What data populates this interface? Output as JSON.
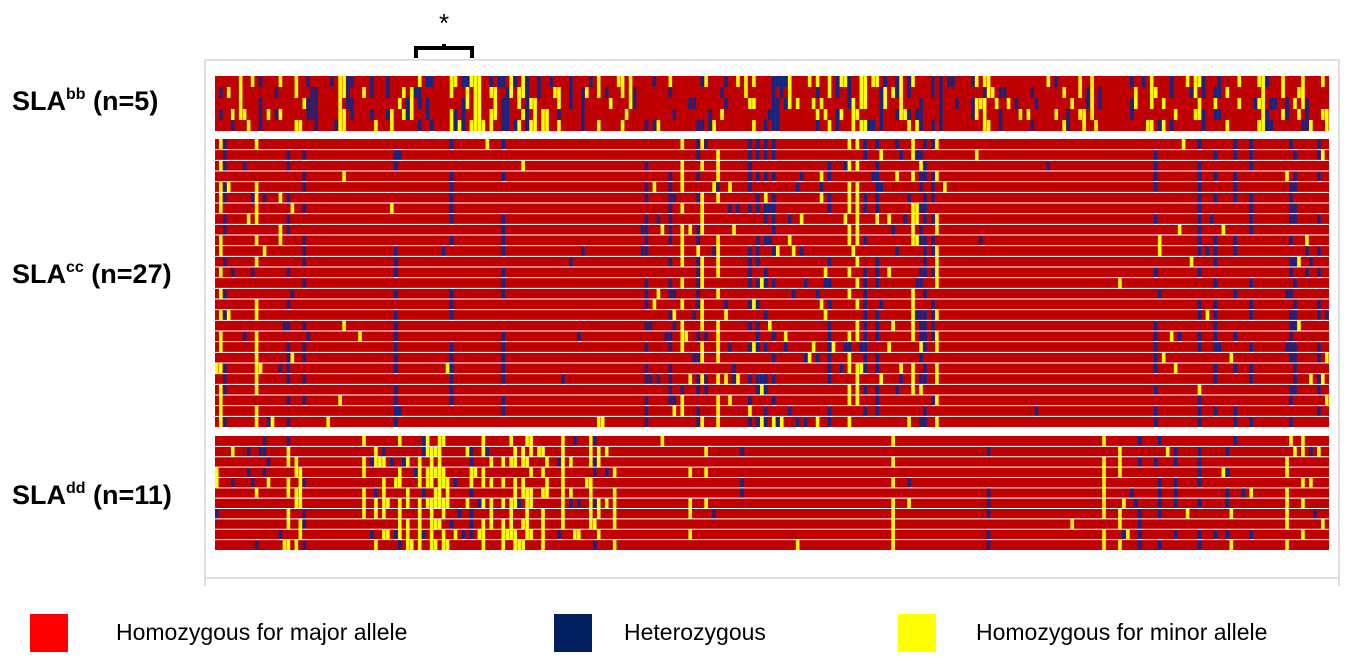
{
  "chart_data": {
    "type": "heatmap",
    "marker": "*",
    "groups": [
      {
        "name": "SLA",
        "sup": "bb",
        "n_text": " (n=5)",
        "rows": 5
      },
      {
        "name": "SLA",
        "sup": "cc",
        "n_text": " (n=27)",
        "rows": 27
      },
      {
        "name": "SLA",
        "sup": "dd",
        "n_text": " (n=11)",
        "rows": 11
      }
    ],
    "legend": [
      {
        "label": "Homozygous for major allele",
        "color": "#ff0000",
        "key": "major"
      },
      {
        "label": "Heterozygous",
        "color": "#002060",
        "key": "het"
      },
      {
        "label": "Homozygous for minor allele",
        "color": "#ffff00",
        "key": "minor"
      }
    ],
    "cell_colors": {
      "major": "#c00000",
      "het": "#1a237e",
      "minor": "#ffff00"
    }
  }
}
